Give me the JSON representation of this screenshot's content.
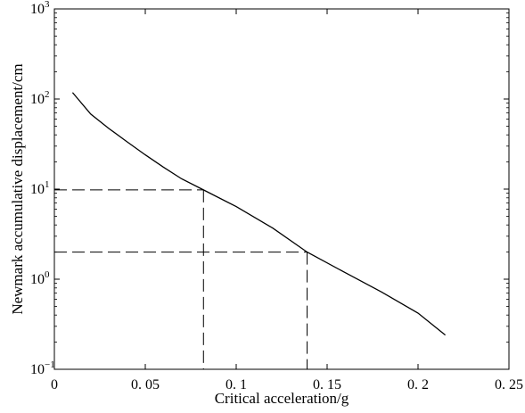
{
  "chart_data": {
    "type": "line",
    "title": "",
    "xlabel": "Critical acceleration/g",
    "ylabel": "Newmark accumulative displacement/cm",
    "xlim": [
      0,
      0.25
    ],
    "ylim": [
      0.1,
      1000
    ],
    "yscale": "log",
    "grid": false,
    "x_ticks": [
      0,
      0.05,
      0.1,
      0.15,
      0.2,
      0.25
    ],
    "x_tick_labels": [
      "0",
      "0. 05",
      "0. 1",
      "0. 15",
      "0. 2",
      "0. 25"
    ],
    "y_ticks": [
      {
        "value": 0.1,
        "base": "10",
        "exp": "−1"
      },
      {
        "value": 1,
        "base": "10",
        "exp": "0"
      },
      {
        "value": 10,
        "base": "10",
        "exp": "1"
      },
      {
        "value": 100,
        "base": "10",
        "exp": "2"
      },
      {
        "value": 1000,
        "base": "10",
        "exp": "3"
      }
    ],
    "series": [
      {
        "x": [
          0.01,
          0.02,
          0.03,
          0.04,
          0.05,
          0.06,
          0.07,
          0.082,
          0.1,
          0.12,
          0.139,
          0.16,
          0.18,
          0.2,
          0.215
        ],
        "y": [
          118,
          68,
          47,
          33.5,
          24,
          17.5,
          13,
          9.8,
          6.4,
          3.7,
          2.0,
          1.18,
          0.72,
          0.42,
          0.24
        ]
      }
    ],
    "reference_lines": [
      {
        "x": 0.082,
        "y": 9.8
      },
      {
        "x": 0.139,
        "y": 2.0
      }
    ]
  }
}
